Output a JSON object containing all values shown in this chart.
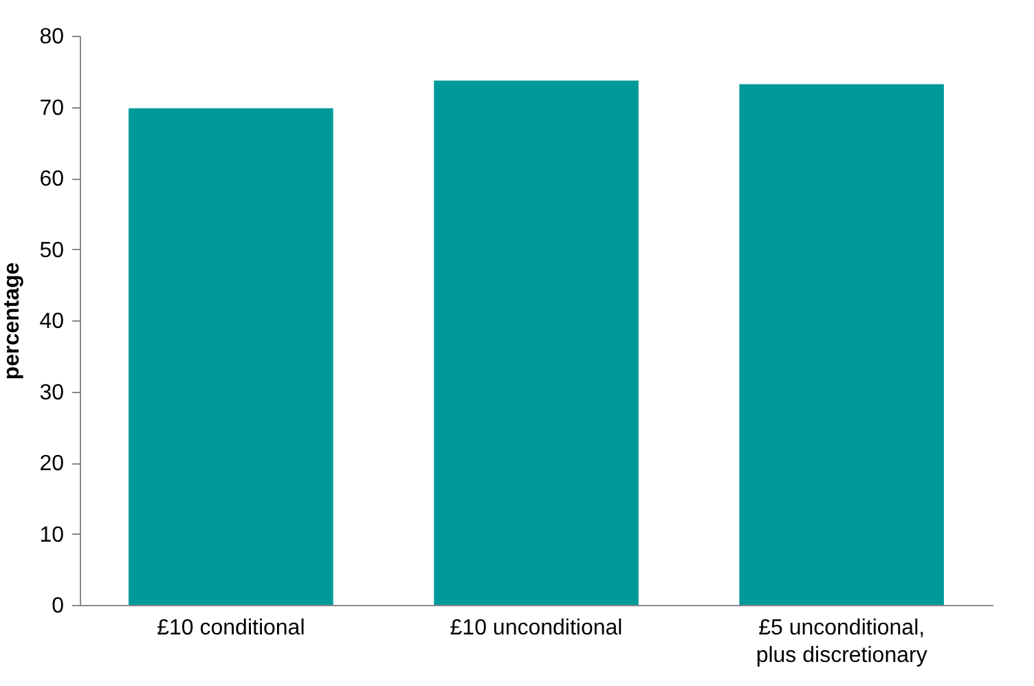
{
  "chart_data": {
    "type": "bar",
    "ylabel": "percentage",
    "categories": [
      "£10 conditional",
      "£10 unconditional",
      "£5 unconditional, plus discretionary"
    ],
    "values": [
      69.8,
      73.7,
      73.2
    ],
    "color": "#009999",
    "ylim": [
      0,
      80
    ],
    "yticks": [
      0,
      10,
      20,
      30,
      40,
      50,
      60,
      70,
      80
    ],
    "grid": false
  }
}
